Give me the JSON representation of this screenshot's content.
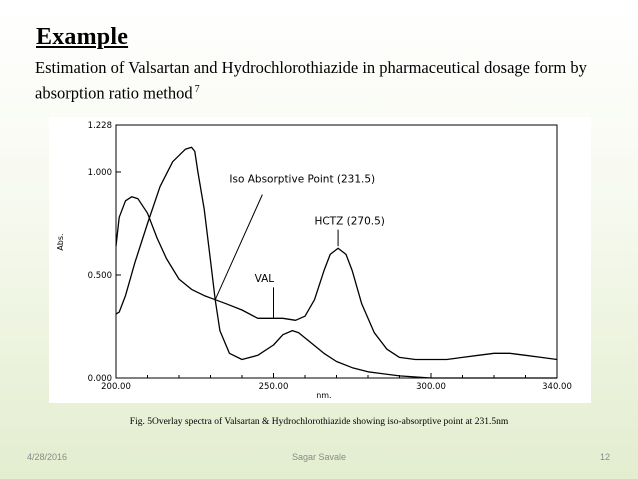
{
  "slide": {
    "title": "Example",
    "subtitle": "Estimation of Valsartan and Hydrochlorothiazide in pharmaceutical dosage form by absorption ratio method",
    "reference": "7",
    "caption": "Fig. 5Overlay spectra of Valsartan & Hydrochlorothiazide showing iso-absorptive point at 231.5nm",
    "footer": {
      "date": "4/28/2016",
      "author": "Sagar Savale",
      "page": "12"
    }
  },
  "chart_data": {
    "type": "line",
    "title": "",
    "xlabel": "nm.",
    "ylabel": "Abs.",
    "xlim": [
      200.0,
      340.0
    ],
    "ylim": [
      0.0,
      1.228
    ],
    "x_ticks": [
      200,
      250,
      300,
      340
    ],
    "x_tick_labels": [
      "200.00",
      "250.00",
      "300.00",
      "340.00"
    ],
    "y_ticks": [
      0.0,
      0.5,
      1.0,
      1.228
    ],
    "y_tick_labels": [
      "0.000",
      "0.500",
      "1.000",
      "1.228"
    ],
    "grid": false,
    "series": [
      {
        "name": "VAL",
        "color": "#000000",
        "points": [
          [
            200,
            0.31
          ],
          [
            201,
            0.32
          ],
          [
            203,
            0.4
          ],
          [
            206,
            0.56
          ],
          [
            210,
            0.75
          ],
          [
            214,
            0.93
          ],
          [
            218,
            1.05
          ],
          [
            222,
            1.11
          ],
          [
            224,
            1.12
          ],
          [
            225,
            1.1
          ],
          [
            226,
            1.0
          ],
          [
            228,
            0.82
          ],
          [
            230,
            0.57
          ],
          [
            231.5,
            0.38
          ],
          [
            233,
            0.23
          ],
          [
            236,
            0.12
          ],
          [
            240,
            0.09
          ],
          [
            245,
            0.11
          ],
          [
            250,
            0.16
          ],
          [
            253,
            0.21
          ],
          [
            256,
            0.23
          ],
          [
            258,
            0.22
          ],
          [
            262,
            0.17
          ],
          [
            266,
            0.12
          ],
          [
            270,
            0.08
          ],
          [
            275,
            0.05
          ],
          [
            280,
            0.03
          ],
          [
            290,
            0.01
          ],
          [
            300,
            0.0
          ],
          [
            320,
            0.0
          ],
          [
            340,
            0.0
          ]
        ]
      },
      {
        "name": "HCTZ",
        "color": "#000000",
        "points": [
          [
            200,
            0.64
          ],
          [
            201,
            0.78
          ],
          [
            203,
            0.86
          ],
          [
            205,
            0.88
          ],
          [
            207,
            0.87
          ],
          [
            210,
            0.8
          ],
          [
            213,
            0.68
          ],
          [
            216,
            0.58
          ],
          [
            220,
            0.48
          ],
          [
            224,
            0.43
          ],
          [
            228,
            0.4
          ],
          [
            231.5,
            0.38
          ],
          [
            235,
            0.36
          ],
          [
            240,
            0.33
          ],
          [
            245,
            0.29
          ],
          [
            250,
            0.29
          ],
          [
            253,
            0.29
          ],
          [
            257,
            0.28
          ],
          [
            260,
            0.3
          ],
          [
            263,
            0.38
          ],
          [
            266,
            0.52
          ],
          [
            268,
            0.6
          ],
          [
            270.5,
            0.63
          ],
          [
            273,
            0.6
          ],
          [
            275,
            0.52
          ],
          [
            278,
            0.36
          ],
          [
            282,
            0.22
          ],
          [
            286,
            0.14
          ],
          [
            290,
            0.1
          ],
          [
            295,
            0.09
          ],
          [
            300,
            0.09
          ],
          [
            305,
            0.09
          ],
          [
            310,
            0.1
          ],
          [
            315,
            0.11
          ],
          [
            320,
            0.12
          ],
          [
            325,
            0.12
          ],
          [
            330,
            0.11
          ],
          [
            335,
            0.1
          ],
          [
            340,
            0.09
          ]
        ]
      }
    ],
    "annotations": [
      {
        "text": "Iso Absorptive Point (231.5)",
        "x": 231.5,
        "y": 0.38
      },
      {
        "text": "HCTZ (270.5)",
        "x": 270.5,
        "y": 0.63
      },
      {
        "text": "VAL",
        "x": 250.0,
        "y": 0.29
      }
    ]
  }
}
